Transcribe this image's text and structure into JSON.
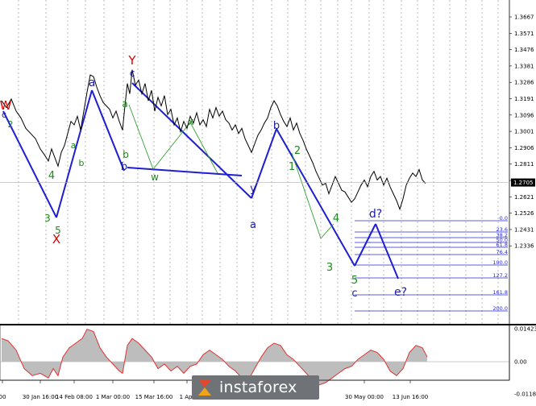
{
  "chart_data": {
    "type": "line",
    "price_axis": {
      "ticks": [
        "1.3667",
        "1.3571",
        "1.3476",
        "1.3381",
        "1.3286",
        "1.3191",
        "1.3096",
        "1.3001",
        "1.2906",
        "1.2811",
        "1.2716",
        "1.2621",
        "1.2526",
        "1.2431",
        "1.2336"
      ],
      "current": "1.2705"
    },
    "osc_axis": {
      "ticks": [
        "0.01423",
        "0.00",
        "-0.01187"
      ]
    },
    "time_axis": {
      "ticks": [
        "00",
        "30 Jan 16:00",
        "14 Feb 08:00",
        "1 Mar 00:00",
        "15 Mar 16:00",
        "1 Apr",
        "30 May 00:00",
        "13 Jun 16:00"
      ]
    },
    "fib_levels": [
      "0.0",
      "23.6",
      "38.2",
      "50.0",
      "61.8",
      "76.4",
      "100.0",
      "127.2",
      "161.8",
      "200.0"
    ],
    "wave_labels": [
      {
        "text": "W",
        "color": "#e00000"
      },
      {
        "text": "c",
        "color": "#1a1aa6"
      },
      {
        "text": "2",
        "color": "#1a8a1a"
      },
      {
        "text": "4",
        "color": "#1a8a1a"
      },
      {
        "text": "3",
        "color": "#1a8a1a"
      },
      {
        "text": "5",
        "color": "#1a8a1a"
      },
      {
        "text": "X",
        "color": "#e00000"
      },
      {
        "text": "a",
        "color": "#1a8a1a"
      },
      {
        "text": "b",
        "color": "#1a8a1a"
      },
      {
        "text": "a",
        "color": "#1a1aa6"
      },
      {
        "text": "b",
        "color": "#1a1aa6"
      },
      {
        "text": "Y",
        "color": "#e00000"
      },
      {
        "text": "c",
        "color": "#1a1aa6"
      },
      {
        "text": "a",
        "color": "#1a8a1a"
      },
      {
        "text": "b",
        "color": "#1a8a1a"
      },
      {
        "text": "w",
        "color": "#1a8a1a"
      },
      {
        "text": "x",
        "color": "#1a8a1a"
      },
      {
        "text": "y",
        "color": "#1a1aa6"
      },
      {
        "text": "a",
        "color": "#1a1aa6"
      },
      {
        "text": "b",
        "color": "#1a1aa6"
      },
      {
        "text": "2",
        "color": "#1a8a1a"
      },
      {
        "text": "1",
        "color": "#1a8a1a"
      },
      {
        "text": "4",
        "color": "#1a8a1a"
      },
      {
        "text": "3",
        "color": "#1a8a1a"
      },
      {
        "text": "5",
        "color": "#1a8a1a"
      },
      {
        "text": "c",
        "color": "#1a1aa6"
      },
      {
        "text": "d?",
        "color": "#1a1aa6"
      },
      {
        "text": "e?",
        "color": "#1a1aa6"
      }
    ],
    "price_path": [
      [
        2,
        1.318
      ],
      [
        8,
        1.314
      ],
      [
        14,
        1.319
      ],
      [
        20,
        1.312
      ],
      [
        26,
        1.308
      ],
      [
        32,
        1.302
      ],
      [
        38,
        1.299
      ],
      [
        44,
        1.296
      ],
      [
        50,
        1.29
      ],
      [
        56,
        1.286
      ],
      [
        60,
        1.283
      ],
      [
        64,
        1.29
      ],
      [
        68,
        1.285
      ],
      [
        72,
        1.28
      ],
      [
        76,
        1.288
      ],
      [
        80,
        1.292
      ],
      [
        84,
        1.299
      ],
      [
        88,
        1.306
      ],
      [
        92,
        1.304
      ],
      [
        96,
        1.309
      ],
      [
        100,
        1.301
      ],
      [
        104,
        1.312
      ],
      [
        108,
        1.323
      ],
      [
        112,
        1.333
      ],
      [
        116,
        1.332
      ],
      [
        120,
        1.326
      ],
      [
        124,
        1.321
      ],
      [
        128,
        1.317
      ],
      [
        132,
        1.315
      ],
      [
        136,
        1.313
      ],
      [
        140,
        1.308
      ],
      [
        144,
        1.312
      ],
      [
        148,
        1.306
      ],
      [
        152,
        1.301
      ],
      [
        155,
        1.315
      ],
      [
        158,
        1.328
      ],
      [
        161,
        1.322
      ],
      [
        164,
        1.336
      ],
      [
        168,
        1.327
      ],
      [
        172,
        1.33
      ],
      [
        176,
        1.322
      ],
      [
        180,
        1.328
      ],
      [
        184,
        1.318
      ],
      [
        188,
        1.324
      ],
      [
        192,
        1.312
      ],
      [
        196,
        1.32
      ],
      [
        200,
        1.315
      ],
      [
        204,
        1.321
      ],
      [
        208,
        1.31
      ],
      [
        212,
        1.313
      ],
      [
        216,
        1.304
      ],
      [
        220,
        1.308
      ],
      [
        224,
        1.3
      ],
      [
        228,
        1.306
      ],
      [
        232,
        1.302
      ],
      [
        236,
        1.309
      ],
      [
        240,
        1.305
      ],
      [
        244,
        1.311
      ],
      [
        248,
        1.304
      ],
      [
        252,
        1.307
      ],
      [
        256,
        1.303
      ],
      [
        260,
        1.313
      ],
      [
        264,
        1.308
      ],
      [
        268,
        1.314
      ],
      [
        272,
        1.309
      ],
      [
        276,
        1.312
      ],
      [
        280,
        1.307
      ],
      [
        284,
        1.305
      ],
      [
        288,
        1.301
      ],
      [
        292,
        1.304
      ],
      [
        296,
        1.299
      ],
      [
        300,
        1.302
      ],
      [
        304,
        1.296
      ],
      [
        308,
        1.292
      ],
      [
        312,
        1.288
      ],
      [
        316,
        1.293
      ],
      [
        320,
        1.298
      ],
      [
        324,
        1.301
      ],
      [
        328,
        1.305
      ],
      [
        332,
        1.308
      ],
      [
        336,
        1.314
      ],
      [
        340,
        1.318
      ],
      [
        344,
        1.315
      ],
      [
        348,
        1.31
      ],
      [
        352,
        1.306
      ],
      [
        356,
        1.303
      ],
      [
        360,
        1.308
      ],
      [
        364,
        1.301
      ],
      [
        368,
        1.305
      ],
      [
        372,
        1.299
      ],
      [
        376,
        1.295
      ],
      [
        380,
        1.29
      ],
      [
        384,
        1.286
      ],
      [
        388,
        1.282
      ],
      [
        392,
        1.277
      ],
      [
        396,
        1.273
      ],
      [
        400,
        1.269
      ],
      [
        404,
        1.27
      ],
      [
        408,
        1.264
      ],
      [
        412,
        1.269
      ],
      [
        416,
        1.274
      ],
      [
        420,
        1.27
      ],
      [
        424,
        1.266
      ],
      [
        428,
        1.265
      ],
      [
        432,
        1.262
      ],
      [
        436,
        1.259
      ],
      [
        440,
        1.261
      ],
      [
        444,
        1.265
      ],
      [
        448,
        1.269
      ],
      [
        452,
        1.272
      ],
      [
        456,
        1.268
      ],
      [
        460,
        1.274
      ],
      [
        464,
        1.277
      ],
      [
        468,
        1.272
      ],
      [
        472,
        1.274
      ],
      [
        476,
        1.269
      ],
      [
        480,
        1.273
      ],
      [
        484,
        1.268
      ],
      [
        488,
        1.264
      ],
      [
        492,
        1.26
      ],
      [
        496,
        1.255
      ],
      [
        500,
        1.261
      ],
      [
        504,
        1.269
      ],
      [
        508,
        1.273
      ],
      [
        512,
        1.276
      ],
      [
        516,
        1.274
      ],
      [
        520,
        1.278
      ],
      [
        524,
        1.272
      ],
      [
        528,
        1.27
      ]
    ],
    "osc_path": [
      [
        2,
        0.01
      ],
      [
        10,
        0.009
      ],
      [
        20,
        0.005
      ],
      [
        30,
        -0.003
      ],
      [
        40,
        -0.006
      ],
      [
        50,
        -0.005
      ],
      [
        60,
        -0.007
      ],
      [
        66,
        -0.003
      ],
      [
        72,
        -0.006
      ],
      [
        78,
        0.002
      ],
      [
        86,
        0.006
      ],
      [
        94,
        0.008
      ],
      [
        102,
        0.01
      ],
      [
        108,
        0.014
      ],
      [
        116,
        0.013
      ],
      [
        124,
        0.006
      ],
      [
        132,
        0.002
      ],
      [
        140,
        -0.001
      ],
      [
        148,
        -0.004
      ],
      [
        152,
        -0.005
      ],
      [
        158,
        0.007
      ],
      [
        164,
        0.01
      ],
      [
        172,
        0.008
      ],
      [
        180,
        0.005
      ],
      [
        188,
        0.002
      ],
      [
        196,
        -0.003
      ],
      [
        204,
        -0.001
      ],
      [
        212,
        -0.004
      ],
      [
        220,
        -0.002
      ],
      [
        228,
        -0.005
      ],
      [
        236,
        -0.002
      ],
      [
        244,
        -0.001
      ],
      [
        252,
        0.003
      ],
      [
        260,
        0.005
      ],
      [
        268,
        0.003
      ],
      [
        276,
        0.001
      ],
      [
        284,
        -0.002
      ],
      [
        292,
        -0.004
      ],
      [
        300,
        -0.007
      ],
      [
        308,
        -0.008
      ],
      [
        316,
        -0.003
      ],
      [
        324,
        0.002
      ],
      [
        332,
        0.006
      ],
      [
        340,
        0.008
      ],
      [
        348,
        0.007
      ],
      [
        356,
        0.003
      ],
      [
        364,
        0.001
      ],
      [
        372,
        -0.002
      ],
      [
        380,
        -0.005
      ],
      [
        388,
        -0.008
      ],
      [
        396,
        -0.01
      ],
      [
        404,
        -0.009
      ],
      [
        412,
        -0.007
      ],
      [
        420,
        -0.005
      ],
      [
        428,
        -0.003
      ],
      [
        436,
        -0.002
      ],
      [
        444,
        0.001
      ],
      [
        452,
        0.003
      ],
      [
        460,
        0.005
      ],
      [
        468,
        0.004
      ],
      [
        476,
        0.001
      ],
      [
        484,
        -0.004
      ],
      [
        492,
        -0.006
      ],
      [
        500,
        -0.003
      ],
      [
        508,
        0.004
      ],
      [
        516,
        0.007
      ],
      [
        524,
        0.006
      ],
      [
        530,
        0.002
      ]
    ]
  }
}
